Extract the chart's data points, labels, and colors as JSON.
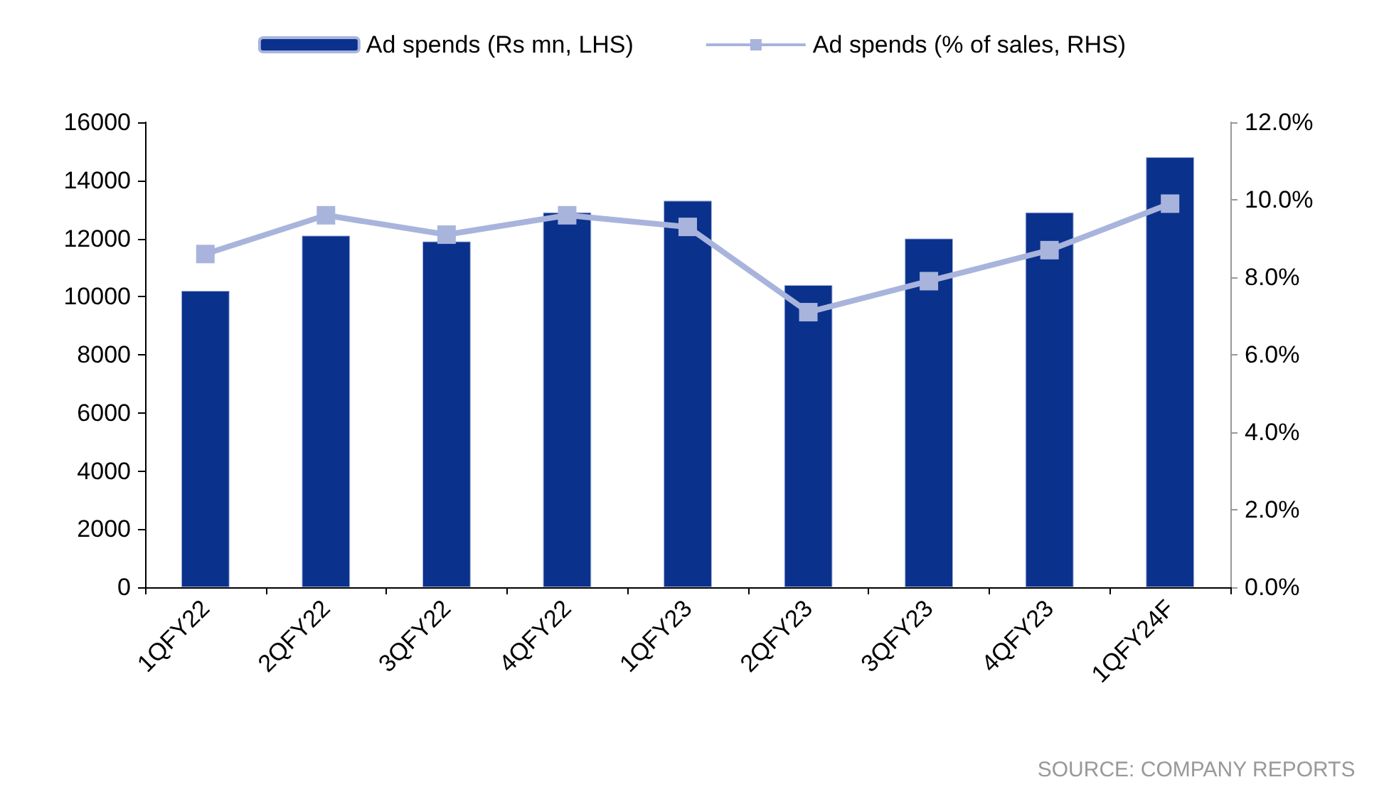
{
  "chart_data": {
    "type": "bar",
    "categories": [
      "1QFY22",
      "2QFY22",
      "3QFY22",
      "4QFY22",
      "1QFY23",
      "2QFY23",
      "3QFY23",
      "4QFY23",
      "1QFY24F"
    ],
    "series": [
      {
        "name": "Ad spends (Rs mn, LHS)",
        "color": "#0a318c",
        "values": [
          10200,
          12100,
          11900,
          12900,
          13300,
          10400,
          12000,
          12900,
          14800
        ]
      },
      {
        "name": "Ad spends (% of sales, RHS)",
        "type": "line",
        "axis": "y2",
        "color": "#a8b4dc",
        "marker": "square",
        "values": [
          8.6,
          9.6,
          9.1,
          9.6,
          9.3,
          7.1,
          7.9,
          8.7,
          9.9
        ]
      }
    ],
    "ylim": [
      0,
      16000
    ],
    "yticks": [
      0,
      2000,
      4000,
      6000,
      8000,
      10000,
      12000,
      14000,
      16000
    ],
    "y2lim": [
      0,
      12
    ],
    "y2ticks": [
      {
        "value": 0,
        "label": "0.0%"
      },
      {
        "value": 2,
        "label": "2.0%"
      },
      {
        "value": 4,
        "label": "4.0%"
      },
      {
        "value": 6,
        "label": "6.0%"
      },
      {
        "value": 8,
        "label": "8.0%"
      },
      {
        "value": 10,
        "label": "10.0%"
      },
      {
        "value": 12,
        "label": "12.0%"
      }
    ],
    "grid": false,
    "legend": "top",
    "annotations": [
      "SOURCE: COMPANY REPORTS"
    ]
  }
}
